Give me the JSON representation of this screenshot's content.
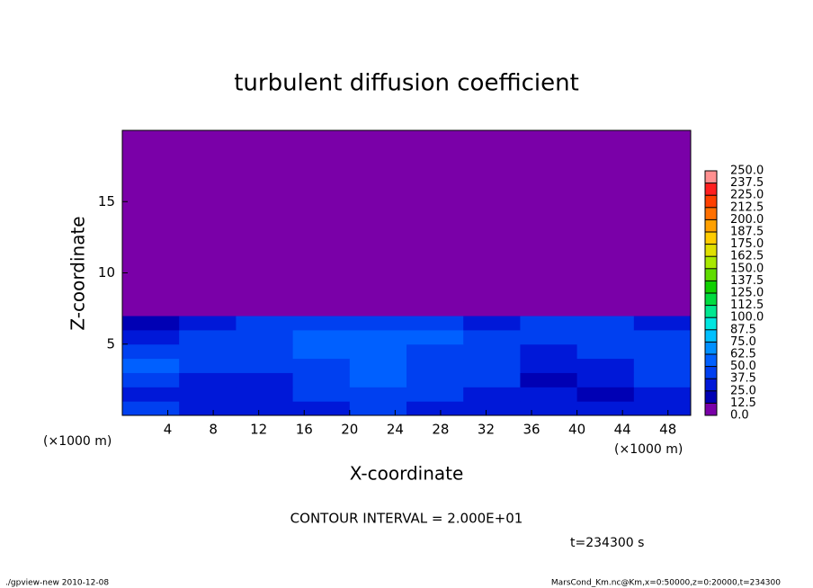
{
  "chart_data": {
    "type": "heatmap",
    "title": "turbulent diffusion coefficient",
    "x_label": "X-coordinate",
    "y_label": "Z-coordinate",
    "x_unit": "(×1000 m)",
    "y_unit": "(×1000 m)",
    "xlim": [
      0,
      50
    ],
    "ylim": [
      0,
      20
    ],
    "xticks": [
      4,
      8,
      12,
      16,
      20,
      24,
      28,
      32,
      36,
      40,
      44,
      48
    ],
    "yticks": [
      5,
      10,
      15
    ],
    "x_edges": [
      0,
      5,
      10,
      15,
      20,
      25,
      30,
      35,
      40,
      45,
      50
    ],
    "y_edges": [
      0,
      1,
      2,
      3,
      4,
      5,
      6,
      7,
      8,
      20
    ],
    "values": [
      [
        40,
        35,
        30,
        35,
        40,
        35,
        30,
        30,
        25,
        35
      ],
      [
        35,
        30,
        25,
        40,
        45,
        40,
        35,
        25,
        20,
        30
      ],
      [
        45,
        35,
        30,
        45,
        50,
        40,
        40,
        20,
        25,
        40
      ],
      [
        50,
        40,
        40,
        45,
        60,
        45,
        45,
        25,
        30,
        45
      ],
      [
        40,
        45,
        45,
        50,
        55,
        45,
        45,
        35,
        40,
        40
      ],
      [
        35,
        40,
        45,
        50,
        50,
        50,
        45,
        45,
        45,
        45
      ],
      [
        20,
        25,
        40,
        45,
        40,
        40,
        35,
        40,
        40,
        30
      ],
      [
        0,
        0,
        5,
        10,
        5,
        10,
        5,
        5,
        5,
        0
      ],
      [
        0,
        0,
        0,
        0,
        0,
        0,
        0,
        0,
        0,
        0
      ]
    ],
    "levels": [
      {
        "value": 0,
        "label": "0.0"
      },
      12.5,
      {
        "value": 25,
        "label": "25.0"
      },
      37.5,
      {
        "value": 50,
        "label": "50.0"
      },
      62.5,
      {
        "value": 75,
        "label": "75.0"
      },
      87.5,
      {
        "value": 100,
        "label": "100.0"
      },
      112.5,
      {
        "value": 125,
        "label": "125.0"
      },
      137.5,
      {
        "value": 150,
        "label": "150.0"
      },
      162.5,
      {
        "value": 175,
        "label": "175.0"
      },
      187.5,
      {
        "value": 200,
        "label": "200.0"
      },
      212.5,
      {
        "value": 225,
        "label": "225.0"
      },
      237.5,
      {
        "value": 250,
        "label": "250.0"
      }
    ],
    "colors": [
      "#7a00a8",
      "#0000b4",
      "#0018d8",
      "#0040f0",
      "#0060ff",
      "#0090ff",
      "#00c0ff",
      "#00e6e0",
      "#00e890",
      "#00dc40",
      "#10d000",
      "#60dc00",
      "#a8e800",
      "#e0e000",
      "#ffcc00",
      "#ffa000",
      "#ff7000",
      "#ff4000",
      "#ff2020",
      "#ff9090"
    ],
    "annotation": "CONTOUR INTERVAL = 2.000E+01",
    "time_label": "t=234300 s",
    "footer_left": "./gpview-new  2010-12-08",
    "footer_right": "MarsCond_Km.nc@Km,x=0:50000,z=0:20000,t=234300"
  }
}
